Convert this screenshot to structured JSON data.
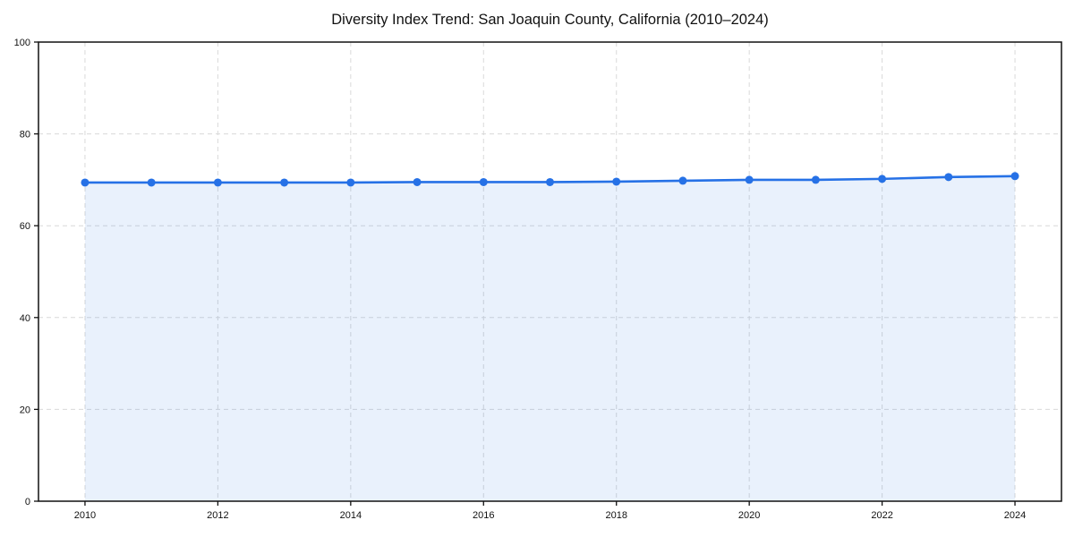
{
  "page": {
    "background_color": "#ffffff"
  },
  "chart_data": {
    "type": "area",
    "title": "Diversity Index Trend: San Joaquin County, California (2010–2024)",
    "xlabel": "",
    "ylabel": "",
    "x": [
      2010,
      2011,
      2012,
      2013,
      2014,
      2015,
      2016,
      2017,
      2018,
      2019,
      2020,
      2021,
      2022,
      2023,
      2024
    ],
    "series": [
      {
        "name": "Diversity Index",
        "values": [
          69.4,
          69.4,
          69.4,
          69.4,
          69.4,
          69.5,
          69.5,
          69.5,
          69.6,
          69.8,
          70.0,
          70.0,
          70.2,
          70.6,
          70.8
        ]
      }
    ],
    "xlim": [
      2009.3,
      2024.7
    ],
    "ylim": [
      0,
      100
    ],
    "xticks": [
      2010,
      2012,
      2014,
      2016,
      2018,
      2020,
      2022,
      2024
    ],
    "yticks": [
      0,
      20,
      40,
      60,
      80,
      100
    ],
    "grid": true,
    "grid_style": "dashed",
    "legend_position": "none",
    "marker": "circle",
    "colors": {
      "line": "#2671e6",
      "marker": "#2671e6",
      "fill": "rgba(38, 113, 230, 0.10)",
      "grid": "#d9d9d9",
      "axis": "#111111",
      "tick_text": "#111111",
      "title_text": "#111111",
      "background": "#ffffff"
    }
  }
}
